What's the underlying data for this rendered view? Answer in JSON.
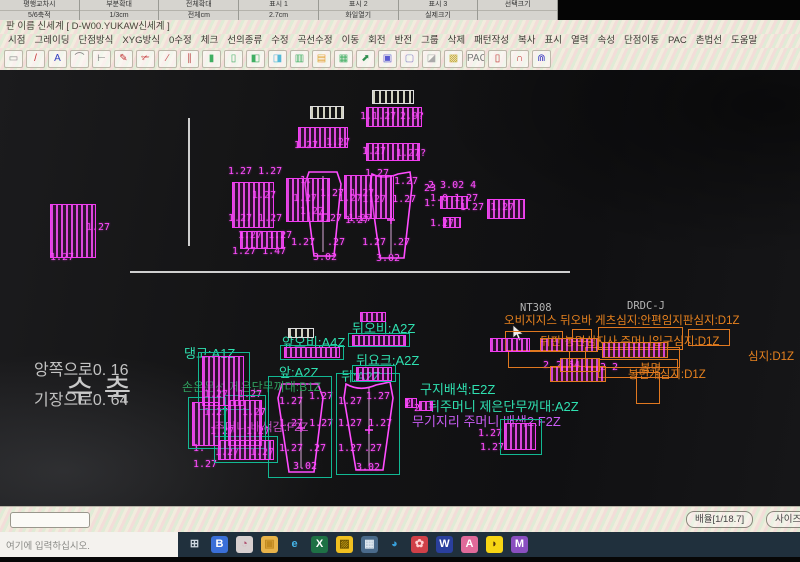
{
  "top_window": {
    "row1": [
      "평행교차시",
      "부분확대",
      "전체확대",
      "표시 1",
      "표시 2",
      "표시 3",
      "선택크기"
    ],
    "row2": [
      "5/6축적",
      "1/3cm",
      "전체cm",
      "2.7cm",
      "화일열기",
      "실제크기",
      ""
    ]
  },
  "title_bar": {
    "title": "판 이름 신세계  [ D-W00.YUKAW신세계 ]"
  },
  "menu": {
    "items": [
      "시점",
      "그레이딩",
      "단점방식",
      "XYG방식",
      "0수정",
      "체크",
      "선의종류",
      "수정",
      "곡선수정",
      "이동",
      "회전",
      "반전",
      "그룹",
      "삭제",
      "패턴작성",
      "복사",
      "표시",
      "열력",
      "속성",
      "단점이동",
      "PAC",
      "촌법선",
      "도움말"
    ]
  },
  "toolbar": {
    "icons": [
      {
        "n": "select-icon",
        "g": "▭",
        "c": "#888888"
      },
      {
        "n": "line-icon",
        "g": "/",
        "c": "#c03030"
      },
      {
        "n": "text-icon",
        "g": "A",
        "c": "#3040c0"
      },
      {
        "n": "arc-icon",
        "g": "⌒",
        "c": "#777777"
      },
      {
        "n": "perpendicular-icon",
        "g": "⊢",
        "c": "#777777"
      },
      {
        "n": "pen-icon",
        "g": "✎",
        "c": "#c03030"
      },
      {
        "n": "cut-icon",
        "g": "✃",
        "c": "#c03030"
      },
      {
        "n": "slash-icon",
        "g": "∕",
        "c": "#c05050"
      },
      {
        "n": "parallel-icon",
        "g": "∥",
        "c": "#c05050"
      },
      {
        "n": "block1-icon",
        "g": "▮",
        "c": "#3fae62"
      },
      {
        "n": "block2-icon",
        "g": "▯",
        "c": "#3fae62"
      },
      {
        "n": "block3-icon",
        "g": "◧",
        "c": "#3fae62"
      },
      {
        "n": "block4-icon",
        "g": "◨",
        "c": "#53b8d8"
      },
      {
        "n": "block5-icon",
        "g": "▥",
        "c": "#3fae62"
      },
      {
        "n": "block6-icon",
        "g": "▤",
        "c": "#e0a030"
      },
      {
        "n": "block7-icon",
        "g": "▦",
        "c": "#3fae62"
      },
      {
        "n": "arrow-icon",
        "g": "⬈",
        "c": "#2f8f4f"
      },
      {
        "n": "fill-icon",
        "g": "▣",
        "c": "#5a5ad0"
      },
      {
        "n": "frame-icon",
        "g": "▢",
        "c": "#8888c8"
      },
      {
        "n": "corner-icon",
        "g": "◪",
        "c": "#aaaaaa"
      },
      {
        "n": "hatch-icon",
        "g": "▩",
        "c": "#c8b040"
      },
      {
        "n": "pac-icon",
        "g": "PAC",
        "c": "#777777"
      },
      {
        "n": "shape1-icon",
        "g": "▯",
        "c": "#c03030"
      },
      {
        "n": "curve1-icon",
        "g": "∩",
        "c": "#c03030"
      },
      {
        "n": "curve2-icon",
        "g": "⋒",
        "c": "#4040c0"
      }
    ]
  },
  "canvas": {
    "shrink_title": "수축",
    "shrink_line1": "앙쪽으로0. 16",
    "shrink_line2": "기장으로0. 64",
    "labels": [
      [
        "1.27",
        86,
        152,
        "m"
      ],
      [
        "1.27",
        50,
        182,
        "m"
      ],
      [
        "1.27",
        294,
        70,
        "m"
      ],
      [
        "1.27",
        326,
        67,
        "m"
      ],
      [
        "1.1.27",
        360,
        41,
        "m"
      ],
      [
        "2.9?",
        400,
        41,
        "m"
      ],
      [
        "1.27",
        362,
        76,
        "m"
      ],
      [
        "1.27?",
        396,
        78,
        "m"
      ],
      [
        "1.27 1.27",
        228,
        96,
        "m"
      ],
      [
        "1.27",
        252,
        120,
        "m"
      ],
      [
        "1.27 1.27",
        228,
        143,
        "m"
      ],
      [
        "1.27",
        300,
        136,
        "m"
      ],
      [
        "1.27 1.27",
        320,
        118,
        "m"
      ],
      [
        "1.27 1.27",
        238,
        160,
        "m"
      ],
      [
        "1.27 1.47",
        232,
        176,
        "m"
      ],
      [
        "1.27 1.27",
        318,
        143,
        "m"
      ],
      [
        "1.",
        300,
        105,
        "m"
      ],
      [
        "1.27",
        293,
        123,
        "m"
      ],
      [
        "1.27",
        338,
        123,
        "m"
      ],
      [
        "1.27",
        345,
        145,
        "m"
      ],
      [
        "1.27",
        291,
        167,
        "m"
      ],
      [
        ".27",
        327,
        167,
        "m"
      ],
      [
        "3.02",
        313,
        182,
        "m"
      ],
      [
        "1.27",
        365,
        98,
        "m"
      ],
      [
        "1.27",
        394,
        106,
        "m"
      ],
      [
        "1.27 1.27",
        362,
        124,
        "m"
      ],
      [
        "1.27",
        362,
        167,
        "m"
      ],
      [
        ".27",
        392,
        167,
        "m"
      ],
      [
        "3.02",
        376,
        183,
        "m"
      ],
      [
        "23",
        424,
        113,
        "m"
      ],
      [
        "1.",
        424,
        128,
        "m"
      ],
      [
        "2 3.02 4",
        428,
        110,
        "m"
      ],
      [
        "1.0 1.27",
        430,
        123,
        "m"
      ],
      [
        "1.27 1.27",
        460,
        132,
        "m"
      ],
      [
        "1.27",
        430,
        148,
        "m"
      ],
      [
        "댕고:A1Z",
        184,
        278,
        "t"
      ],
      [
        "앞오비:A4Z",
        282,
        267,
        "t"
      ],
      [
        "뒤오비:A2Z",
        352,
        253,
        "t"
      ],
      [
        "뒤요크:A2Z",
        356,
        285,
        "t"
      ],
      [
        "앞:A2Z",
        279,
        297,
        "t"
      ],
      [
        "뒤:A2Z",
        341,
        301,
        "t"
      ],
      [
        "구지배색:E2Z",
        420,
        314,
        "t"
      ],
      [
        "뒤주머니 제은단무꺼대:A2Z",
        428,
        331,
        "t"
      ],
      [
        "2",
        405,
        328,
        "m"
      ],
      [
        "2",
        414,
        333,
        "m"
      ],
      [
        "무기지리 주머니 배색2:F2Z",
        412,
        346,
        "v"
      ],
      [
        "손은문선 제은단무꺼대:B1Z",
        182,
        312,
        "g"
      ],
      [
        "주머니 배색감:F2Z",
        214,
        352,
        "d"
      ],
      [
        "1.27",
        204,
        319,
        "m"
      ],
      [
        "1.27",
        238,
        319,
        "m"
      ],
      [
        "1.27",
        204,
        337,
        "m"
      ],
      [
        "1.27",
        242,
        337,
        "m"
      ],
      [
        "1.27",
        210,
        356,
        "m"
      ],
      [
        "1.27",
        246,
        356,
        "m"
      ],
      [
        "1.",
        193,
        373,
        "m"
      ],
      [
        "1.27",
        215,
        377,
        "m"
      ],
      [
        "1.27",
        250,
        377,
        "m"
      ],
      [
        "1.27",
        193,
        389,
        "m"
      ],
      [
        "1.27",
        279,
        326,
        "m"
      ],
      [
        "1.27",
        309,
        321,
        "m"
      ],
      [
        "1.27 1.27",
        279,
        348,
        "m"
      ],
      [
        "1.27",
        279,
        373,
        "m"
      ],
      [
        ".27",
        308,
        373,
        "m"
      ],
      [
        "3.02",
        293,
        391,
        "m"
      ],
      [
        "1.27",
        338,
        326,
        "m"
      ],
      [
        "1.27",
        366,
        321,
        "m"
      ],
      [
        "1.27 1.27",
        338,
        348,
        "m"
      ],
      [
        "1.27",
        338,
        373,
        "m"
      ],
      [
        ".27",
        364,
        373,
        "m"
      ],
      [
        "3.02",
        356,
        392,
        "m"
      ],
      [
        "1.27",
        478,
        358,
        "m"
      ],
      [
        "1.27",
        480,
        372,
        "m"
      ],
      [
        "NT308",
        520,
        233,
        "w"
      ],
      [
        "DRDC-J",
        627,
        231,
        "w"
      ],
      [
        "오비지지스 뒤오바 게츠심지:안편임지판심지:D1Z",
        504,
        246,
        "o"
      ],
      [
        "뒤판 봉면심지사 주머니입구심지:D1Z",
        540,
        267,
        "o"
      ],
      [
        "심지:D1Z",
        748,
        282,
        "o"
      ],
      [
        "2",
        543,
        290,
        "m"
      ],
      [
        "2.54",
        556,
        290,
        "m"
      ],
      [
        "2 2",
        600,
        292,
        "m"
      ],
      [
        "봉면걔심지:D1Z",
        628,
        300,
        "o"
      ],
      [
        "봄면",
        640,
        294,
        "o"
      ]
    ],
    "pieces": [
      [
        "w",
        310,
        36,
        34,
        13
      ],
      [
        "w",
        372,
        20,
        42,
        14
      ],
      [
        "w",
        288,
        258,
        26,
        10
      ],
      [
        "h",
        50,
        134,
        46,
        54
      ],
      [
        "h",
        232,
        112,
        42,
        46
      ],
      [
        "h",
        286,
        108,
        44,
        44
      ],
      [
        "h",
        344,
        105,
        50,
        44
      ],
      [
        "h",
        240,
        161,
        44,
        18
      ],
      [
        "h",
        298,
        57,
        50,
        21
      ],
      [
        "h",
        366,
        37,
        56,
        20
      ],
      [
        "h",
        366,
        73,
        54,
        18
      ],
      [
        "h",
        440,
        126,
        28,
        13
      ],
      [
        "h",
        487,
        129,
        38,
        20
      ],
      [
        "h",
        443,
        147,
        18,
        11
      ],
      [
        "h",
        360,
        242,
        26,
        10
      ],
      [
        "t",
        198,
        282,
        52,
        58
      ],
      [
        "t",
        188,
        327,
        38,
        52
      ],
      [
        "t",
        224,
        325,
        42,
        54
      ],
      [
        "t",
        214,
        366,
        64,
        27
      ],
      [
        "t",
        268,
        306,
        64,
        102
      ],
      [
        "t",
        336,
        303,
        64,
        102
      ],
      [
        "t",
        500,
        349,
        42,
        36
      ],
      [
        "t",
        352,
        295,
        44,
        17
      ],
      [
        "t",
        280,
        275,
        64,
        15
      ],
      [
        "t",
        348,
        263,
        62,
        14
      ],
      [
        "h",
        202,
        286,
        42,
        50
      ],
      [
        "h",
        192,
        332,
        28,
        44
      ],
      [
        "h",
        228,
        330,
        34,
        46
      ],
      [
        "h",
        218,
        370,
        56,
        20
      ],
      [
        "h",
        284,
        277,
        56,
        11
      ],
      [
        "h",
        352,
        265,
        54,
        11
      ],
      [
        "h",
        356,
        297,
        36,
        14
      ],
      [
        "h",
        504,
        353,
        32,
        27
      ],
      [
        "h",
        405,
        328,
        12,
        10
      ],
      [
        "h",
        419,
        331,
        14,
        10
      ],
      [
        "o",
        505,
        261,
        58,
        20
      ],
      [
        "o",
        572,
        259,
        20,
        13
      ],
      [
        "o",
        598,
        257,
        85,
        23
      ],
      [
        "o",
        688,
        259,
        42,
        17
      ],
      [
        "o",
        508,
        281,
        62,
        17
      ],
      [
        "o",
        585,
        277,
        95,
        21
      ],
      [
        "o",
        598,
        289,
        80,
        19
      ],
      [
        "o",
        636,
        302,
        24,
        32
      ],
      [
        "oh",
        540,
        268,
        58,
        14
      ],
      [
        "oh",
        602,
        272,
        66,
        16
      ],
      [
        "oh",
        550,
        296,
        56,
        16
      ],
      [
        "oh",
        560,
        288,
        40,
        14
      ],
      [
        "h",
        490,
        268,
        40,
        14
      ]
    ]
  },
  "status_bar": {
    "zoom_label": "배율[1/18.7]",
    "size_label": "사이즈"
  },
  "taskbar": {
    "search_placeholder": "여기에 입력하십시오.",
    "icons": [
      {
        "n": "task-view-icon",
        "g": "⊞",
        "bg": "transparent",
        "fg": "#cfd8e0"
      },
      {
        "n": "blue-doc-icon",
        "g": "B",
        "bg": "#3a6fd8",
        "fg": "#ffffff"
      },
      {
        "n": "round-app-icon",
        "g": "◔",
        "bg": "#d8d0d0",
        "fg": "#b05070"
      },
      {
        "n": "folder-icon",
        "g": "▣",
        "bg": "#e8b34a",
        "fg": "#c28a20"
      },
      {
        "n": "internet-explorer-icon",
        "g": "e",
        "bg": "transparent",
        "fg": "#45b4e8"
      },
      {
        "n": "excel-icon",
        "g": "X",
        "bg": "#1e7145",
        "fg": "#ffffff"
      },
      {
        "n": "sticky-note-icon",
        "g": "▨",
        "bg": "#f0c020",
        "fg": "#6a5200"
      },
      {
        "n": "calculator-icon",
        "g": "▦",
        "bg": "#4a6a8a",
        "fg": "#dfe8f0"
      },
      {
        "n": "edge-icon",
        "g": "◕",
        "bg": "transparent",
        "fg": "#38a0dc"
      },
      {
        "n": "red-grid-app-icon",
        "g": "✿",
        "bg": "#d04048",
        "fg": "#ffd0d0"
      },
      {
        "n": "win-app-icon",
        "g": "W",
        "bg": "#2a3f9d",
        "fg": "#ffffff"
      },
      {
        "n": "pink-app-icon",
        "g": "A",
        "bg": "#e06a9a",
        "fg": "#ffffff"
      },
      {
        "n": "kakaotalk-icon",
        "g": "◗",
        "bg": "#f7d514",
        "fg": "#55340a"
      },
      {
        "n": "purple-app-icon",
        "g": "M",
        "bg": "#8a4fc0",
        "fg": "#ffffff"
      }
    ]
  }
}
